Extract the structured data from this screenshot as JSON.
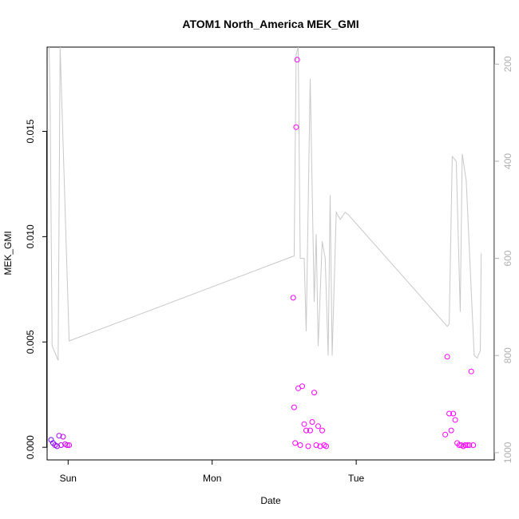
{
  "chart_data": {
    "type": "scatter",
    "title": "ATOM1 North_America MEK_GMI",
    "xlabel": "Date",
    "ylabel": "MEK_GMI",
    "x_ticks": [
      "Sun",
      "Mon",
      "Tue"
    ],
    "y_ticks": [
      "0.000",
      "0.005",
      "0.010",
      "0.015"
    ],
    "y2_ticks": [
      "200",
      "400",
      "600",
      "800",
      "1000"
    ],
    "xlim": [
      "Sat 20:30",
      "Tue 23:00"
    ],
    "ylim": [
      -0.0006,
      0.019
    ],
    "y2lim": [
      1015,
      165
    ],
    "y2_reversed": true,
    "grid": false,
    "colors": {
      "line": "#c8c8c8",
      "points_start": "#7a00ff",
      "points_end": "#ff00ff",
      "axis": "#000000",
      "right_axis": "#b0b0b0"
    },
    "line_series": {
      "x": [
        "Sat 20:50",
        "Sat 21:00",
        "Sat 21:20",
        "Sat 22:20",
        "Sat 22:40",
        "Sun 00:10",
        "Mon 13:40",
        "Mon 14:00",
        "Mon 14:20",
        "Mon 14:40",
        "Mon 15:20",
        "Mon 15:40",
        "Mon 16:20",
        "Mon 17:00",
        "Mon 17:20",
        "Mon 17:40",
        "Mon 18:20",
        "Mon 18:50",
        "Mon 19:20",
        "Mon 19:40",
        "Mon 20:00",
        "Mon 20:40",
        "Mon 21:20",
        "Mon 22:10",
        "Mon 22:40",
        "Tue 15:10",
        "Tue 15:30",
        "Tue 16:00",
        "Tue 16:40",
        "Tue 17:20",
        "Tue 17:40",
        "Tue 18:20",
        "Tue 19:40",
        "Tue 20:10",
        "Tue 20:40",
        "Tue 20:50"
      ],
      "y": [
        165,
        280,
        780,
        810,
        165,
        770,
        595,
        180,
        165,
        600,
        600,
        750,
        230,
        690,
        550,
        780,
        565,
        600,
        800,
        470,
        800,
        505,
        520,
        505,
        510,
        740,
        735,
        390,
        400,
        710,
        385,
        440,
        800,
        805,
        790,
        590
      ]
    },
    "points": {
      "x": [
        "Sat 21:10",
        "Sat 21:30",
        "Sat 21:50",
        "Sat 22:10",
        "Sat 22:30",
        "Sat 22:50",
        "Sat 23:10",
        "Sat 23:30",
        "Sat 23:50",
        "Sun 00:10",
        "Mon 13:30",
        "Mon 13:40",
        "Mon 13:50",
        "Mon 14:00",
        "Mon 14:10",
        "Mon 14:20",
        "Mon 14:40",
        "Mon 15:00",
        "Mon 15:20",
        "Mon 15:40",
        "Mon 16:00",
        "Mon 16:20",
        "Mon 16:40",
        "Mon 17:00",
        "Mon 17:20",
        "Mon 17:40",
        "Mon 18:00",
        "Mon 18:20",
        "Mon 18:40",
        "Mon 19:00",
        "Tue 14:50",
        "Tue 15:10",
        "Tue 15:30",
        "Tue 15:50",
        "Tue 16:10",
        "Tue 16:30",
        "Tue 16:50",
        "Tue 17:10",
        "Tue 17:30",
        "Tue 17:50",
        "Tue 18:10",
        "Tue 18:30",
        "Tue 18:50",
        "Tue 19:10",
        "Tue 19:30"
      ],
      "y": [
        0.00035,
        0.0002,
        0.0001,
        5e-05,
        0.00055,
        0.0001,
        0.0005,
        0.00015,
        0.0001,
        0.0001,
        0.0071,
        0.0019,
        0.0002,
        0.0152,
        0.0184,
        0.0028,
        0.0001,
        0.0029,
        0.0011,
        0.0008,
        5e-05,
        0.0008,
        0.0012,
        0.0026,
        0.0001,
        0.001,
        5e-05,
        0.0008,
        0.0001,
        5e-05,
        0.0006,
        0.0043,
        0.0016,
        0.0008,
        0.0016,
        0.0013,
        0.0002,
        0.0001,
        0.0001,
        5e-05,
        0.0001,
        0.0001,
        0.0001,
        0.0036,
        0.0001
      ]
    }
  }
}
